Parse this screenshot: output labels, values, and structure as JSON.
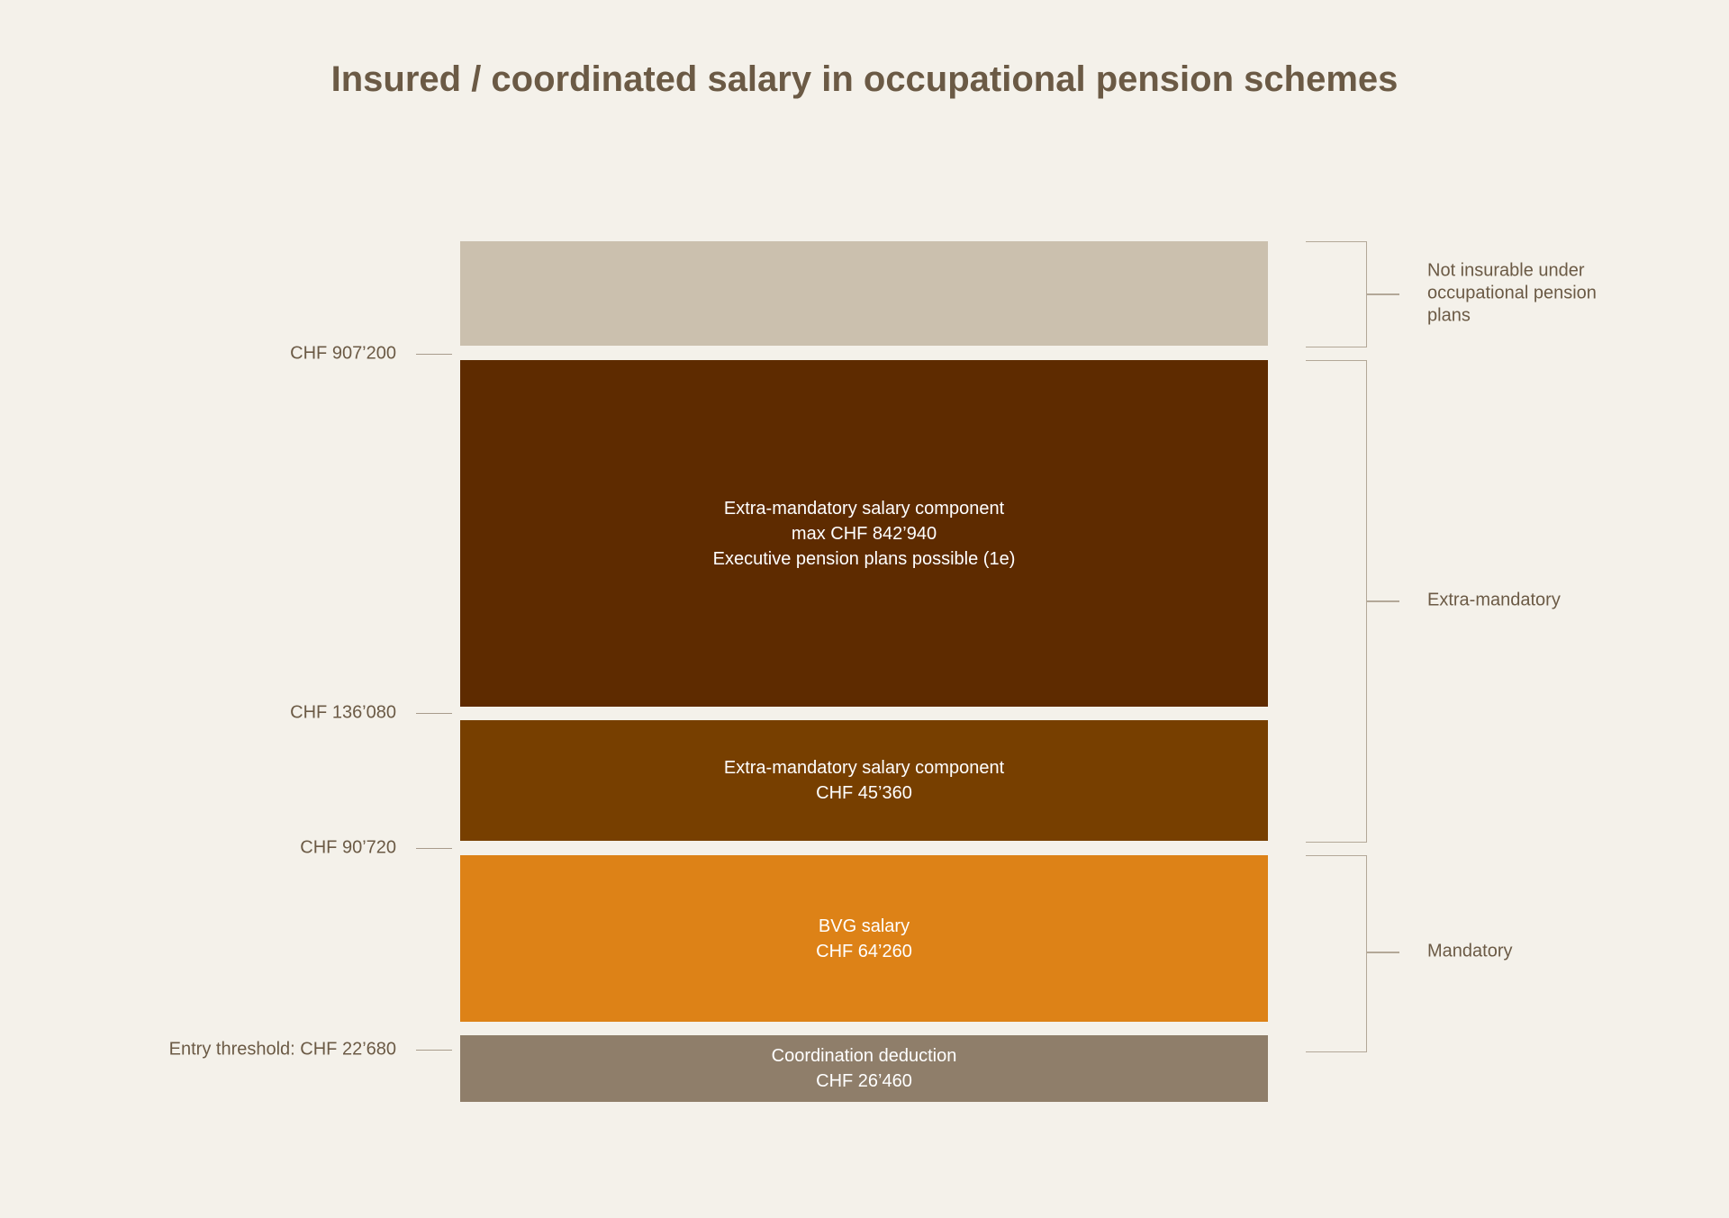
{
  "title": "Insured / coordinated salary in occupational pension schemes",
  "colors": {
    "background": "#f4f1ea",
    "not_insurable": "#cbc0ae",
    "extra_upper": "#5e2b00",
    "extra_lower": "#773f00",
    "bvg": "#dd8217",
    "coordination": "#8f7e6a",
    "text": "#6b5a45"
  },
  "blocks": {
    "extra_upper": {
      "line1": "Extra-mandatory salary component",
      "line2": "max CHF 842’940",
      "line3": "Executive pension plans possible (1e)"
    },
    "extra_lower": {
      "line1": "Extra-mandatory salary component",
      "line2": "CHF 45’360"
    },
    "bvg": {
      "line1": "BVG salary",
      "line2": "CHF 64’260"
    },
    "coordination": {
      "line1": "Coordination deduction",
      "line2": "CHF 26’460"
    }
  },
  "levels": {
    "max": "CHF 907’200",
    "upper": "CHF 136’080",
    "bvg_max": "CHF 90’720",
    "entry": "Entry threshold: CHF 22’680"
  },
  "groups": {
    "not_insurable": {
      "line1": "Not insurable under",
      "line2": "occupational pension",
      "line3": "plans"
    },
    "extra_mandatory": "Extra-mandatory",
    "mandatory": "Mandatory"
  }
}
